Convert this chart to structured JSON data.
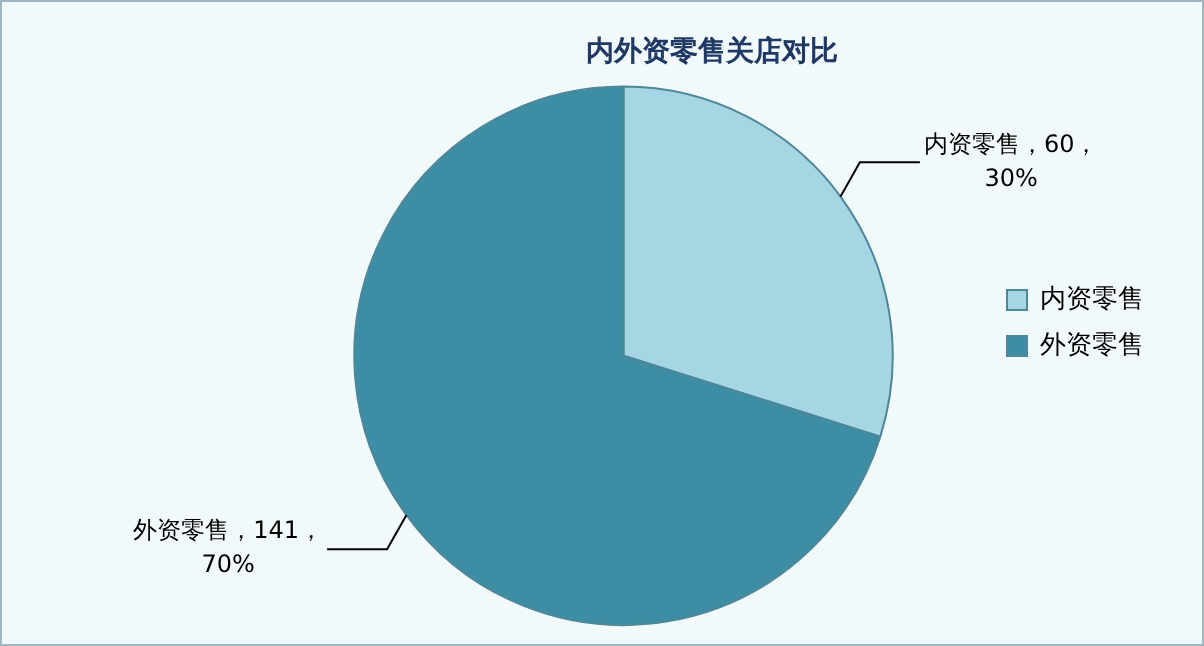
{
  "chart_data": {
    "type": "pie",
    "title": "内外资零售关店对比",
    "categories": [
      "内资零售",
      "外资零售"
    ],
    "values": [
      60,
      141
    ],
    "colors": [
      "#a6d6e3",
      "#3d8ea5"
    ],
    "value_labels": [
      "内资零售，60，30%",
      "外资零售，141，70%"
    ],
    "legend": "right"
  }
}
